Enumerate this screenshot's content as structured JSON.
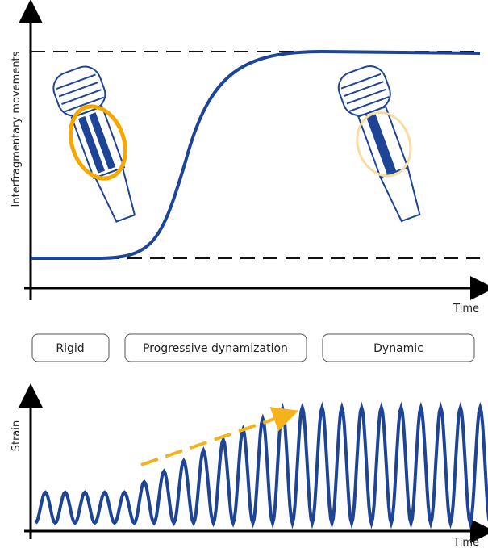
{
  "top_chart": {
    "y_label": "Interfragmentary movements",
    "x_label": "Time"
  },
  "phases": [
    "Rigid",
    "Progressive dynamization",
    "Dynamic"
  ],
  "bottom_chart": {
    "y_label": "Strain",
    "x_label": "Time"
  }
}
